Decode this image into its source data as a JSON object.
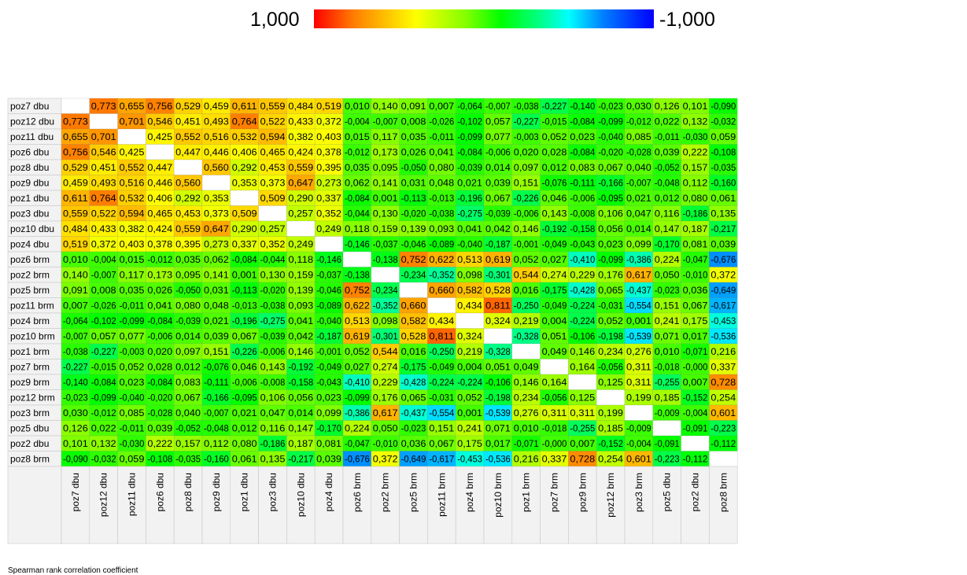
{
  "legend": {
    "min_label": "1,000",
    "max_label": "-1,000",
    "colors": [
      "#ff0000",
      "#ffff00",
      "#00ff00",
      "#00ffff",
      "#0000ff"
    ]
  },
  "footer": {
    "caption": "Spearman rank correlation coefficient"
  },
  "chart_data": {
    "type": "heatmap",
    "title": "",
    "color_scale": {
      "min": -1,
      "max": 1,
      "low_color": "#0000ff",
      "high_color": "#ff0000"
    },
    "diagonal": "blank",
    "rows": [
      "poz7 dbu",
      "poz12 dbu",
      "poz11 dbu",
      "poz6 dbu",
      "poz8 dbu",
      "poz9 dbu",
      "poz1 dbu",
      "poz3 dbu",
      "poz10 dbu",
      "poz4 dbu",
      "poz6 brm",
      "poz2 brm",
      "poz5 brm",
      "poz11 brm",
      "poz4 brm",
      "poz10 brm",
      "poz1 brm",
      "poz7 brm",
      "poz9 brm",
      "poz12 brm",
      "poz3 brm",
      "poz5 dbu",
      "poz2 dbu",
      "poz8 brm"
    ],
    "columns": [
      "poz7 dbu",
      "poz12 dbu",
      "poz11 dbu",
      "poz6 dbu",
      "poz8 dbu",
      "poz9 dbu",
      "poz1 dbu",
      "poz3 dbu",
      "poz10 dbu",
      "poz4 dbu",
      "poz6 brm",
      "poz2 brm",
      "poz5 brm",
      "poz11 brm",
      "poz4 brm",
      "poz10 brm",
      "poz1 brm",
      "poz7 brm",
      "poz9 brm",
      "poz12 brm",
      "poz3 brm",
      "poz5 dbu",
      "poz2 dbu",
      "poz8 brm"
    ],
    "values": [
      [
        null,
        "0,773",
        "0,655",
        "0,756",
        "0,529",
        "0,459",
        "0,611",
        "0,559",
        "0,484",
        "0,519",
        "0,010",
        "0,140",
        "0,091",
        "0,007",
        "-0,064",
        "-0,007",
        "-0,038",
        "-0,227",
        "-0,140",
        "-0,023",
        "0,030",
        "0,126",
        "0,101",
        "-0,090"
      ],
      [
        "0,773",
        null,
        "0,701",
        "0,546",
        "0,451",
        "0,493",
        "0,764",
        "0,522",
        "0,433",
        "0,372",
        "-0,004",
        "-0,007",
        "0,008",
        "-0,026",
        "-0,102",
        "0,057",
        "-0,227",
        "-0,015",
        "-0,084",
        "-0,099",
        "-0,012",
        "0,022",
        "0,132",
        "-0,032"
      ],
      [
        "0,655",
        "0,701",
        null,
        "0,425",
        "0,552",
        "0,516",
        "0,532",
        "0,594",
        "0,382",
        "0,403",
        "0,015",
        "0,117",
        "0,035",
        "-0,011",
        "-0,099",
        "0,077",
        "-0,003",
        "0,052",
        "0,023",
        "-0,040",
        "0,085",
        "-0,011",
        "-0,030",
        "0,059"
      ],
      [
        "0,756",
        "0,546",
        "0,425",
        null,
        "0,447",
        "0,446",
        "0,406",
        "0,465",
        "0,424",
        "0,378",
        "-0,012",
        "0,173",
        "0,026",
        "0,041",
        "-0,084",
        "-0,006",
        "0,020",
        "0,028",
        "-0,084",
        "-0,020",
        "-0,028",
        "0,039",
        "0,222",
        "-0,108"
      ],
      [
        "0,529",
        "0,451",
        "0,552",
        "0,447",
        null,
        "0,560",
        "0,292",
        "0,453",
        "0,559",
        "0,395",
        "0,035",
        "0,095",
        "-0,050",
        "0,080",
        "-0,039",
        "0,014",
        "0,097",
        "0,012",
        "0,083",
        "0,067",
        "0,040",
        "-0,052",
        "0,157",
        "-0,035"
      ],
      [
        "0,459",
        "0,493",
        "0,516",
        "0,446",
        "0,560",
        null,
        "0,353",
        "0,373",
        "0,647",
        "0,273",
        "0,062",
        "0,141",
        "0,031",
        "0,048",
        "0,021",
        "0,039",
        "0,151",
        "-0,076",
        "-0,111",
        "-0,166",
        "-0,007",
        "-0,048",
        "0,112",
        "-0,160"
      ],
      [
        "0,611",
        "0,764",
        "0,532",
        "0,406",
        "0,292",
        "0,353",
        null,
        "0,509",
        "0,290",
        "0,337",
        "-0,084",
        "0,001",
        "-0,113",
        "-0,013",
        "-0,196",
        "0,067",
        "-0,226",
        "0,046",
        "-0,006",
        "-0,095",
        "0,021",
        "0,012",
        "0,080",
        "0,061"
      ],
      [
        "0,559",
        "0,522",
        "0,594",
        "0,465",
        "0,453",
        "0,373",
        "0,509",
        null,
        "0,257",
        "0,352",
        "-0,044",
        "0,130",
        "-0,020",
        "-0,038",
        "-0,275",
        "-0,039",
        "-0,006",
        "0,143",
        "-0,008",
        "0,106",
        "0,047",
        "0,116",
        "-0,186",
        "0,135"
      ],
      [
        "0,484",
        "0,433",
        "0,382",
        "0,424",
        "0,559",
        "0,647",
        "0,290",
        "0,257",
        null,
        "0,249",
        "0,118",
        "0,159",
        "0,139",
        "0,093",
        "0,041",
        "0,042",
        "0,146",
        "-0,192",
        "-0,158",
        "0,056",
        "0,014",
        "0,147",
        "0,187",
        "-0,217"
      ],
      [
        "0,519",
        "0,372",
        "0,403",
        "0,378",
        "0,395",
        "0,273",
        "0,337",
        "0,352",
        "0,249",
        null,
        "-0,146",
        "-0,037",
        "-0,046",
        "-0,089",
        "-0,040",
        "-0,187",
        "-0,001",
        "-0,049",
        "-0,043",
        "0,023",
        "0,099",
        "-0,170",
        "0,081",
        "0,039"
      ],
      [
        "0,010",
        "-0,004",
        "0,015",
        "-0,012",
        "0,035",
        "0,062",
        "-0,084",
        "-0,044",
        "0,118",
        "-0,146",
        null,
        "-0,138",
        "0,752",
        "0,622",
        "0,513",
        "0,619",
        "0,052",
        "0,027",
        "-0,410",
        "-0,099",
        "-0,386",
        "0,224",
        "-0,047",
        "-0,676"
      ],
      [
        "0,140",
        "-0,007",
        "0,117",
        "0,173",
        "0,095",
        "0,141",
        "0,001",
        "0,130",
        "0,159",
        "-0,037",
        "-0,138",
        null,
        "-0,234",
        "-0,352",
        "0,098",
        "-0,301",
        "0,544",
        "0,274",
        "0,229",
        "0,176",
        "0,617",
        "0,050",
        "-0,010",
        "0,372"
      ],
      [
        "0,091",
        "0,008",
        "0,035",
        "0,026",
        "-0,050",
        "0,031",
        "-0,113",
        "-0,020",
        "0,139",
        "-0,046",
        "0,752",
        "-0,234",
        null,
        "0,660",
        "0,582",
        "0,528",
        "0,016",
        "-0,175",
        "-0,428",
        "0,065",
        "-0,437",
        "-0,023",
        "0,036",
        "-0,649"
      ],
      [
        "0,007",
        "-0,026",
        "-0,011",
        "0,041",
        "0,080",
        "0,048",
        "-0,013",
        "-0,038",
        "0,093",
        "-0,089",
        "0,622",
        "-0,352",
        "0,660",
        null,
        "0,434",
        "0,811",
        "-0,250",
        "-0,049",
        "-0,224",
        "-0,031",
        "-0,554",
        "0,151",
        "0,067",
        "-0,617"
      ],
      [
        "-0,064",
        "-0,102",
        "-0,099",
        "-0,084",
        "-0,039",
        "0,021",
        "-0,196",
        "-0,275",
        "0,041",
        "-0,040",
        "0,513",
        "0,098",
        "0,582",
        "0,434",
        null,
        "0,324",
        "0,219",
        "0,004",
        "-0,224",
        "0,052",
        "0,001",
        "0,241",
        "0,175",
        "-0,453"
      ],
      [
        "-0,007",
        "0,057",
        "0,077",
        "-0,006",
        "0,014",
        "0,039",
        "0,067",
        "-0,039",
        "0,042",
        "-0,187",
        "0,619",
        "-0,301",
        "0,528",
        "0,811",
        "0,324",
        null,
        "-0,328",
        "0,051",
        "-0,106",
        "-0,198",
        "-0,539",
        "0,071",
        "0,017",
        "-0,536"
      ],
      [
        "-0,038",
        "-0,227",
        "-0,003",
        "0,020",
        "0,097",
        "0,151",
        "-0,226",
        "-0,006",
        "0,146",
        "-0,001",
        "0,052",
        "0,544",
        "0,016",
        "-0,250",
        "0,219",
        "-0,328",
        null,
        "0,049",
        "0,146",
        "0,234",
        "0,276",
        "0,010",
        "-0,071",
        "0,216"
      ],
      [
        "-0,227",
        "-0,015",
        "0,052",
        "0,028",
        "0,012",
        "-0,076",
        "0,046",
        "0,143",
        "-0,192",
        "-0,049",
        "0,027",
        "0,274",
        "-0,175",
        "-0,049",
        "0,004",
        "0,051",
        "0,049",
        null,
        "0,164",
        "-0,056",
        "0,311",
        "-0,018",
        "-0,000",
        "0,337"
      ],
      [
        "-0,140",
        "-0,084",
        "0,023",
        "-0,084",
        "0,083",
        "-0,111",
        "-0,006",
        "-0,008",
        "-0,158",
        "-0,043",
        "-0,410",
        "0,229",
        "-0,428",
        "-0,224",
        "-0,224",
        "-0,106",
        "0,146",
        "0,164",
        null,
        "0,125",
        "0,311",
        "-0,255",
        "0,007",
        "0,728"
      ],
      [
        "-0,023",
        "-0,099",
        "-0,040",
        "-0,020",
        "0,067",
        "-0,166",
        "-0,095",
        "0,106",
        "0,056",
        "0,023",
        "-0,099",
        "0,176",
        "0,065",
        "-0,031",
        "0,052",
        "-0,198",
        "0,234",
        "-0,056",
        "0,125",
        null,
        "0,199",
        "0,185",
        "-0,152",
        "0,254"
      ],
      [
        "0,030",
        "-0,012",
        "0,085",
        "-0,028",
        "0,040",
        "-0,007",
        "0,021",
        "0,047",
        "0,014",
        "0,099",
        "-0,386",
        "0,617",
        "-0,437",
        "-0,554",
        "0,001",
        "-0,539",
        "0,276",
        "0,311",
        "0,311",
        "0,199",
        null,
        "-0,009",
        "-0,004",
        "0,601"
      ],
      [
        "0,126",
        "0,022",
        "-0,011",
        "0,039",
        "-0,052",
        "-0,048",
        "0,012",
        "0,116",
        "0,147",
        "-0,170",
        "0,224",
        "0,050",
        "-0,023",
        "0,151",
        "0,241",
        "0,071",
        "0,010",
        "-0,018",
        "-0,255",
        "0,185",
        "-0,009",
        null,
        "-0,091",
        "-0,223"
      ],
      [
        "0,101",
        "0,132",
        "-0,030",
        "0,222",
        "0,157",
        "0,112",
        "0,080",
        "-0,186",
        "0,187",
        "0,081",
        "-0,047",
        "-0,010",
        "0,036",
        "0,067",
        "0,175",
        "0,017",
        "-0,071",
        "-0,000",
        "0,007",
        "-0,152",
        "-0,004",
        "-0,091",
        null,
        "-0,112"
      ],
      [
        "-0,090",
        "-0,032",
        "0,059",
        "-0,108",
        "-0,035",
        "-0,160",
        "0,061",
        "0,135",
        "-0,217",
        "0,039",
        "-0,676",
        "0,372",
        "-0,649",
        "-0,617",
        "-0,453",
        "-0,536",
        "0,216",
        "0,337",
        "0,728",
        "0,254",
        "0,601",
        "-0,223",
        "-0,112",
        null
      ]
    ]
  }
}
